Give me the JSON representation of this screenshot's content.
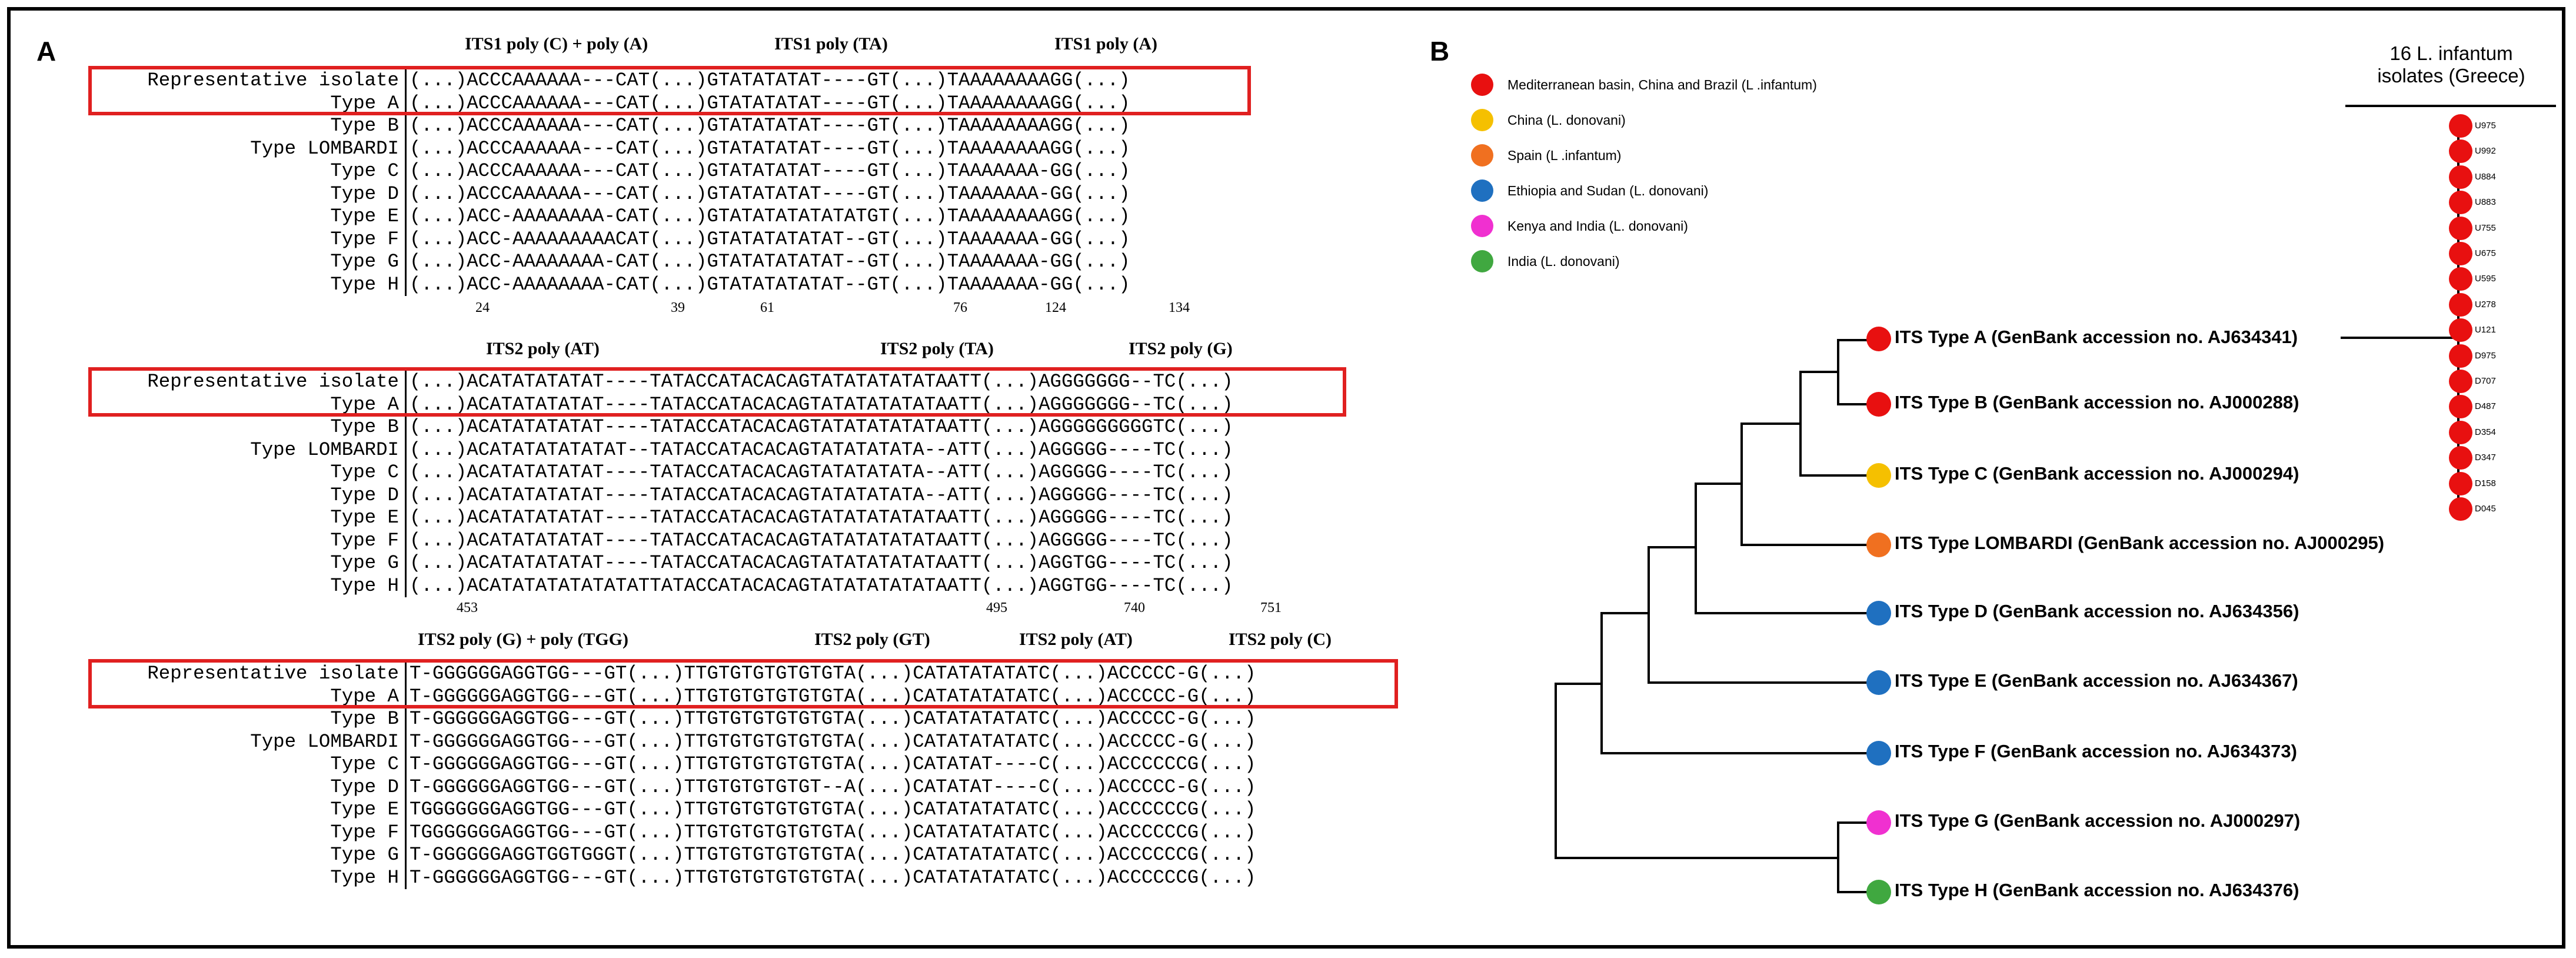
{
  "panel_a": {
    "label": "A",
    "blocks": [
      {
        "headers": [
          {
            "text": "ITS1  poly (C)  +   poly (A)"
          },
          {
            "text": "ITS1 poly (TA)"
          },
          {
            "text": "ITS1 poly (A)"
          }
        ],
        "rows": [
          {
            "label": "Representative isolate",
            "seq": "(...)ACCCAAAAAA---CAT(...)GTATATATAT----GT(...)TAAAAAAAAGG(...)"
          },
          {
            "label": "Type A",
            "seq": "(...)ACCCAAAAAA---CAT(...)GTATATATAT----GT(...)TAAAAAAAAGG(...)"
          },
          {
            "label": "Type B",
            "seq": "(...)ACCCAAAAAA---CAT(...)GTATATATAT----GT(...)TAAAAAAAAGG(...)"
          },
          {
            "label": "Type LOMBARDI",
            "seq": "(...)ACCCAAAAAA---CAT(...)GTATATATAT----GT(...)TAAAAAAAAGG(...)"
          },
          {
            "label": "Type C",
            "seq": "(...)ACCCAAAAAA---CAT(...)GTATATATAT----GT(...)TAAAAAAA-GG(...)"
          },
          {
            "label": "Type D",
            "seq": "(...)ACCCAAAAAA---CAT(...)GTATATATAT----GT(...)TAAAAAAA-GG(...)"
          },
          {
            "label": "Type E",
            "seq": "(...)ACC-AAAAAAAA-CAT(...)GTATATATATATATGT(...)TAAAAAAAAGG(...)"
          },
          {
            "label": "Type F",
            "seq": "(...)ACC-AAAAAAAAACAT(...)GTATATATATAT--GT(...)TAAAAAAA-GG(...)"
          },
          {
            "label": "Type G",
            "seq": "(...)ACC-AAAAAAAA-CAT(...)GTATATATATAT--GT(...)TAAAAAAA-GG(...)"
          },
          {
            "label": "Type H",
            "seq": "(...)ACC-AAAAAAAA-CAT(...)GTATATATATAT--GT(...)TAAAAAAA-GG(...)"
          }
        ],
        "positions": [
          "24",
          "39",
          "61",
          "76",
          "124",
          "134"
        ]
      },
      {
        "headers": [
          {
            "text": "ITS2 poly (AT)"
          },
          {
            "text": "ITS2 poly (TA)"
          },
          {
            "text": "ITS2 poly (G)"
          }
        ],
        "rows": [
          {
            "label": "Representative isolate",
            "seq": "(...)ACATATATATAT----TATACCATACACAGTATATATATATAATT(...)AGGGGGGG--TC(...)"
          },
          {
            "label": "Type A",
            "seq": "(...)ACATATATATAT----TATACCATACACAGTATATATATATAATT(...)AGGGGGGG--TC(...)"
          },
          {
            "label": "Type B",
            "seq": "(...)ACATATATATAT----TATACCATACACAGTATATATATATAATT(...)AGGGGGGGGGTC(...)"
          },
          {
            "label": "Type LOMBARDI",
            "seq": "(...)ACATATATATATAT--TATACCATACACAGTATATATATA--ATT(...)AGGGGG----TC(...)"
          },
          {
            "label": "Type C",
            "seq": "(...)ACATATATATAT----TATACCATACACAGTATATATATA--ATT(...)AGGGGG----TC(...)"
          },
          {
            "label": "Type D",
            "seq": "(...)ACATATATATAT----TATACCATACACAGTATATATATA--ATT(...)AGGGGG----TC(...)"
          },
          {
            "label": "Type E",
            "seq": "(...)ACATATATATAT----TATACCATACACAGTATATATATATAATT(...)AGGGGG----TC(...)"
          },
          {
            "label": "Type F",
            "seq": "(...)ACATATATATAT----TATACCATACACAGTATATATATATAATT(...)AGGGGG----TC(...)"
          },
          {
            "label": "Type G",
            "seq": "(...)ACATATATATAT----TATACCATACACAGTATATATATATAATT(...)AGGTGG----TC(...)"
          },
          {
            "label": "Type H",
            "seq": "(...)ACATATATATATATATTATACCATACACAGTATATATATATAATT(...)AGGTGG----TC(...)"
          }
        ],
        "positions": [
          "453",
          "495",
          "740",
          "751"
        ]
      },
      {
        "headers": [
          {
            "text": "ITS2 poly (G)  +  poly (TGG)"
          },
          {
            "text": "ITS2 poly (GT)"
          },
          {
            "text": "ITS2 poly (AT)"
          },
          {
            "text": "ITS2 poly (C)"
          }
        ],
        "rows": [
          {
            "label": "Representative isolate",
            "seq": "T-GGGGGGAGGTGG---GT(...)TTGTGTGTGTGTGTA(...)CATATATATATC(...)ACCCCC-G(...)"
          },
          {
            "label": "Type A",
            "seq": "T-GGGGGGAGGTGG---GT(...)TTGTGTGTGTGTGTA(...)CATATATATATC(...)ACCCCC-G(...)"
          },
          {
            "label": "Type B",
            "seq": "T-GGGGGGAGGTGG---GT(...)TTGTGTGTGTGTGTA(...)CATATATATATC(...)ACCCCC-G(...)"
          },
          {
            "label": "Type LOMBARDI",
            "seq": "T-GGGGGGAGGTGG---GT(...)TTGTGTGTGTGTGTA(...)CATATATATATC(...)ACCCCC-G(...)"
          },
          {
            "label": "Type C",
            "seq": "T-GGGGGGAGGTGG---GT(...)TTGTGTGTGTGTGTA(...)CATATAT----C(...)ACCCCCCG(...)"
          },
          {
            "label": "Type D",
            "seq": "T-GGGGGGAGGTGG---GT(...)TTGTGTGTGTGT--A(...)CATATAT----C(...)ACCCCC-G(...)"
          },
          {
            "label": "Type E",
            "seq": "TGGGGGGGAGGTGG---GT(...)TTGTGTGTGTGTGTA(...)CATATATATATC(...)ACCCCCCG(...)"
          },
          {
            "label": "Type F",
            "seq": "TGGGGGGGAGGTGG---GT(...)TTGTGTGTGTGTGTA(...)CATATATATATC(...)ACCCCCCG(...)"
          },
          {
            "label": "Type G",
            "seq": "T-GGGGGGAGGTGGTGGGT(...)TTGTGTGTGTGTGTA(...)CATATATATATC(...)ACCCCCCG(...)"
          },
          {
            "label": "Type H",
            "seq": "T-GGGGGGAGGTGG---GT(...)TTGTGTGTGTGTGTA(...)CATATATATATC(...)ACCCCCCG(...)"
          }
        ],
        "positions": []
      }
    ]
  },
  "panel_b": {
    "label": "B",
    "legend": [
      {
        "text": "Mediterranean basin, China and Brazil (L .infantum)",
        "color": "#e81010"
      },
      {
        "text": "China (L. donovani)",
        "color": "#f5c000"
      },
      {
        "text": "Spain (L .infantum)",
        "color": "#f07020"
      },
      {
        "text": "Ethiopia and Sudan (L. donovani)",
        "color": "#1f70c0"
      },
      {
        "text": "Kenya and India (L. donovani)",
        "color": "#f030d0"
      },
      {
        "text": "India (L. donovani)",
        "color": "#40a840"
      }
    ],
    "leaves": [
      {
        "text": "ITS Type A (GenBank accession no. AJ634341)",
        "color": "#e81010"
      },
      {
        "text": "ITS Type B (GenBank accession no. AJ000288)",
        "color": "#e81010"
      },
      {
        "text": "ITS Type C (GenBank accession no. AJ000294)",
        "color": "#f5c000"
      },
      {
        "text": "ITS Type LOMBARDI (GenBank accession no. AJ000295)",
        "color": "#f07020"
      },
      {
        "text": "ITS Type D (GenBank accession no. AJ634356)",
        "color": "#1f70c0"
      },
      {
        "text": "ITS Type E (GenBank accession no. AJ634367)",
        "color": "#1f70c0"
      },
      {
        "text": "ITS Type F (GenBank accession no. AJ634373)",
        "color": "#1f70c0"
      },
      {
        "text": "ITS Type G (GenBank accession no. AJ000297)",
        "color": "#f030d0"
      },
      {
        "text": "ITS Type H (GenBank accession no. AJ634376)",
        "color": "#40a840"
      }
    ],
    "group_title_line1": "16 L. infantum",
    "group_title_line2": "isolates (Greece)",
    "isolates": [
      "U975",
      "U992",
      "U884",
      "U883",
      "U755",
      "U675",
      "U595",
      "U278",
      "U121",
      "D975",
      "D707",
      "D487",
      "D354",
      "D347",
      "D158",
      "D045"
    ]
  }
}
